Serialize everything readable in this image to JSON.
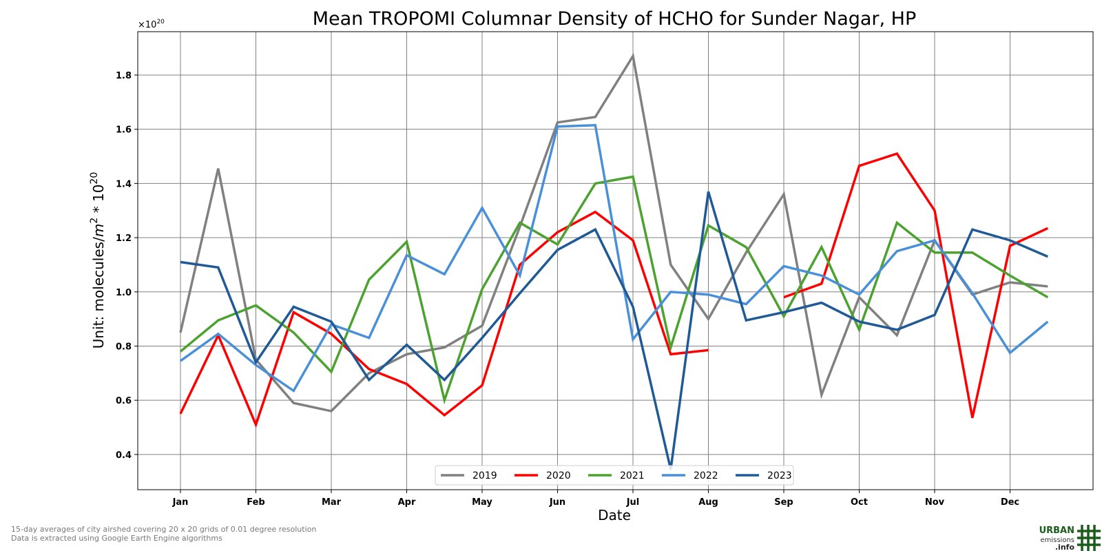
{
  "chart_data": {
    "type": "line",
    "title": "Mean TROPOMI Columnar Density of HCHO for Sunder Nagar, HP",
    "xlabel": "Date",
    "ylabel": "Unit: molecules/",
    "ylabel_unit_base": "m",
    "ylabel_unit_sup": "2",
    "ylabel_mult": " * 10",
    "ylabel_mult_sup": "20",
    "offset_text_base": "×10",
    "offset_text_exp": "20",
    "ylim": [
      0.27,
      1.96
    ],
    "yticks": [
      "0.4",
      "0.6",
      "0.8",
      "1.0",
      "1.2",
      "1.4",
      "1.6",
      "1.8"
    ],
    "ytick_values": [
      0.4,
      0.6,
      0.8,
      1.0,
      1.2,
      1.4,
      1.6,
      1.8
    ],
    "x_months": [
      "Jan",
      "Feb",
      "Mar",
      "Apr",
      "May",
      "Jun",
      "Jul",
      "Aug",
      "Sep",
      "Oct",
      "Nov",
      "Dec"
    ],
    "x_periods": [
      "Jan",
      "mid-Jan",
      "Feb",
      "mid-Feb",
      "Mar",
      "mid-Mar",
      "Apr",
      "mid-Apr",
      "May",
      "mid-May",
      "Jun",
      "mid-Jun",
      "Jul",
      "mid-Jul",
      "Aug",
      "mid-Aug",
      "Sep",
      "mid-Sep",
      "Oct",
      "mid-Oct",
      "Nov",
      "mid-Nov",
      "Dec",
      "mid-Dec"
    ],
    "grid": true,
    "legend_position": "bottom-center",
    "series": [
      {
        "name": "2019",
        "color": "#808080",
        "values": [
          0.85,
          1.455,
          0.75,
          0.59,
          0.56,
          0.7,
          0.77,
          0.795,
          0.875,
          1.24,
          1.625,
          1.645,
          1.87,
          1.1,
          0.9,
          1.145,
          1.36,
          0.62,
          0.98,
          0.84,
          1.19,
          0.99,
          1.035,
          1.02
        ]
      },
      {
        "name": "2020",
        "color": "#ff0000",
        "values": [
          0.55,
          0.84,
          0.51,
          0.925,
          0.845,
          0.715,
          0.66,
          0.545,
          0.655,
          1.1,
          1.22,
          1.295,
          1.19,
          0.77,
          0.785,
          null,
          0.98,
          1.03,
          1.465,
          1.51,
          1.3,
          0.535,
          1.17,
          1.235
        ]
      },
      {
        "name": "2021",
        "color": "#4ca22f",
        "values": [
          0.78,
          0.895,
          0.95,
          0.85,
          0.705,
          1.045,
          1.185,
          0.6,
          1.01,
          1.255,
          1.175,
          1.4,
          1.425,
          0.795,
          1.245,
          1.165,
          0.91,
          1.165,
          0.86,
          1.255,
          1.145,
          1.145,
          1.06,
          0.98
        ]
      },
      {
        "name": "2022",
        "color": "#4a90d9",
        "values": [
          0.745,
          0.845,
          0.73,
          0.635,
          0.88,
          0.83,
          1.135,
          1.065,
          1.31,
          1.06,
          1.61,
          1.615,
          0.825,
          1.0,
          0.99,
          0.955,
          1.095,
          1.06,
          0.99,
          1.15,
          1.19,
          0.995,
          0.775,
          0.89
        ]
      },
      {
        "name": "2023",
        "color": "#1f5a96",
        "values": [
          1.11,
          1.09,
          0.74,
          0.945,
          0.89,
          0.675,
          0.805,
          0.675,
          0.83,
          0.995,
          1.155,
          1.23,
          0.945,
          0.345,
          1.37,
          0.895,
          0.925,
          0.96,
          0.89,
          0.86,
          0.915,
          1.23,
          1.19,
          1.13
        ]
      }
    ]
  },
  "footnote": {
    "line1": "15-day averages of city airshed covering 20 x 20 grids of 0.01 degree resolution",
    "line2": "Data is extracted using Google Earth Engine algorithms"
  },
  "logo": {
    "line1": "URBAN",
    "line2": "emissions",
    "line3": ".info"
  }
}
